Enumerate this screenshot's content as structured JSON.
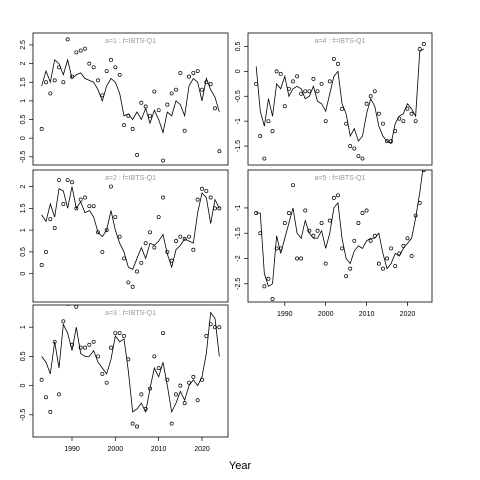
{
  "xlabel": "Year",
  "chart_data": [
    {
      "type": "line",
      "title": "a=1 : f=IBTS-Q1",
      "x": [
        1983,
        1984,
        1985,
        1986,
        1987,
        1988,
        1989,
        1990,
        1991,
        1992,
        1993,
        1994,
        1995,
        1996,
        1997,
        1998,
        1999,
        2000,
        2001,
        2002,
        2003,
        2004,
        2005,
        2006,
        2007,
        2008,
        2009,
        2010,
        2011,
        2012,
        2013,
        2014,
        2015,
        2016,
        2017,
        2018,
        2019,
        2020,
        2021,
        2022,
        2023,
        2024
      ],
      "xlim": [
        1981,
        2026
      ],
      "ylim": [
        -0.72,
        2.82
      ],
      "yticks": [
        -0.5,
        0.0,
        0.5,
        1.0,
        1.5,
        2.0,
        2.5
      ],
      "series": [
        {
          "style": "points",
          "color": "#000000",
          "values": [
            0.25,
            1.5,
            1.2,
            1.55,
            1.9,
            1.5,
            2.65,
            1.65,
            2.3,
            2.35,
            2.4,
            2.0,
            1.9,
            1.55,
            1.15,
            1.8,
            2.1,
            1.9,
            1.7,
            0.35,
            0.6,
            0.25,
            -0.45,
            0.95,
            0.85,
            0.6,
            1.25,
            0.75,
            -0.6,
            0.9,
            1.2,
            1.3,
            1.75,
            0.2,
            1.65,
            1.75,
            1.8,
            1.3,
            1.5,
            1.45,
            0.8,
            -0.35
          ]
        },
        {
          "style": "line",
          "color": "#000000",
          "values": [
            1.4,
            1.8,
            1.5,
            2.1,
            2.0,
            1.7,
            2.1,
            1.6,
            1.7,
            1.75,
            1.6,
            1.55,
            1.5,
            1.3,
            1.0,
            1.4,
            1.6,
            1.5,
            1.2,
            0.6,
            0.65,
            0.5,
            0.7,
            0.5,
            0.8,
            0.4,
            0.75,
            0.5,
            0.15,
            0.7,
            0.6,
            1.0,
            0.9,
            0.6,
            1.4,
            1.6,
            1.5,
            1.0,
            1.6,
            1.3,
            1.1,
            0.7
          ]
        }
      ]
    },
    {
      "type": "line",
      "title": "a=2 : f=IBTS-Q1",
      "x": [
        1983,
        1984,
        1985,
        1986,
        1987,
        1988,
        1989,
        1990,
        1991,
        1992,
        1993,
        1994,
        1995,
        1996,
        1997,
        1998,
        1999,
        2000,
        2001,
        2002,
        2003,
        2004,
        2005,
        2006,
        2007,
        2008,
        2009,
        2010,
        2011,
        2012,
        2013,
        2014,
        2015,
        2016,
        2017,
        2018,
        2019,
        2020,
        2021,
        2022,
        2023,
        2024
      ],
      "xlim": [
        1981,
        2026
      ],
      "ylim": [
        -0.65,
        2.38
      ],
      "yticks": [
        0.0,
        0.5,
        1.0,
        1.5,
        2.0
      ],
      "series": [
        {
          "style": "points",
          "color": "#000000",
          "values": [
            0.2,
            0.5,
            1.25,
            1.05,
            2.15,
            1.6,
            2.15,
            2.1,
            1.5,
            1.7,
            1.75,
            1.55,
            1.55,
            0.95,
            0.5,
            1.0,
            2.0,
            1.3,
            0.85,
            0.35,
            -0.2,
            -0.3,
            0.05,
            0.25,
            0.7,
            0.95,
            0.6,
            1.3,
            1.75,
            0.5,
            0.3,
            0.75,
            0.85,
            0.8,
            0.85,
            0.55,
            1.7,
            1.95,
            1.9,
            1.75,
            1.5,
            1.5
          ]
        },
        {
          "style": "line",
          "color": "#000000",
          "values": [
            1.35,
            1.2,
            1.6,
            1.3,
            1.95,
            1.9,
            1.5,
            2.0,
            1.5,
            1.65,
            1.4,
            1.45,
            1.3,
            0.95,
            0.85,
            1.0,
            1.45,
            1.0,
            0.7,
            0.5,
            0.15,
            0.1,
            0.35,
            0.6,
            0.35,
            0.7,
            0.65,
            0.75,
            0.9,
            0.45,
            0.15,
            0.55,
            0.65,
            0.8,
            0.75,
            0.7,
            1.4,
            1.85,
            1.75,
            1.15,
            1.7,
            1.5
          ]
        }
      ]
    },
    {
      "type": "line",
      "title": "a=3 : f=IBTS-Q1",
      "x": [
        1983,
        1984,
        1985,
        1986,
        1987,
        1988,
        1989,
        1990,
        1991,
        1992,
        1993,
        1994,
        1995,
        1996,
        1997,
        1998,
        1999,
        2000,
        2001,
        2002,
        2003,
        2004,
        2005,
        2006,
        2007,
        2008,
        2009,
        2010,
        2011,
        2012,
        2013,
        2014,
        2015,
        2016,
        2017,
        2018,
        2019,
        2020,
        2021,
        2022,
        2023,
        2024
      ],
      "xlim": [
        1981,
        2026
      ],
      "xticks": [
        1990,
        2000,
        2010,
        2020
      ],
      "ylim": [
        -0.88,
        1.38
      ],
      "yticks": [
        -0.5,
        0.0,
        0.5,
        1.0
      ],
      "series": [
        {
          "style": "points",
          "color": "#000000",
          "values": [
            0.1,
            -0.2,
            -0.45,
            0.75,
            -0.15,
            1.1,
            1.4,
            0.7,
            1.35,
            0.65,
            0.65,
            0.7,
            0.75,
            0.5,
            0.2,
            0.05,
            0.65,
            0.9,
            0.9,
            0.85,
            0.45,
            -0.65,
            -0.7,
            -0.15,
            -0.4,
            -0.05,
            0.5,
            0.3,
            0.9,
            0.1,
            -0.65,
            -0.15,
            0.0,
            -0.3,
            0.05,
            0.15,
            -0.25,
            0.1,
            0.85,
            1.05,
            1.0,
            1.0
          ]
        },
        {
          "style": "line",
          "color": "#000000",
          "values": [
            0.5,
            0.4,
            0.2,
            0.75,
            0.3,
            1.05,
            0.9,
            0.6,
            1.0,
            0.55,
            0.5,
            0.5,
            0.6,
            0.4,
            0.3,
            0.2,
            0.45,
            0.85,
            0.75,
            0.8,
            0.25,
            -0.45,
            -0.4,
            -0.3,
            -0.45,
            -0.05,
            0.3,
            0.15,
            0.4,
            0.0,
            -0.45,
            -0.3,
            -0.1,
            -0.25,
            0.0,
            0.1,
            0.0,
            0.15,
            0.55,
            1.25,
            1.15,
            0.5
          ]
        }
      ]
    },
    {
      "type": "line",
      "title": "a=4 : f=IBTS-Q1",
      "x": [
        1983,
        1984,
        1985,
        1986,
        1987,
        1988,
        1989,
        1990,
        1991,
        1992,
        1993,
        1994,
        1995,
        1996,
        1997,
        1998,
        1999,
        2000,
        2001,
        2002,
        2003,
        2004,
        2005,
        2006,
        2007,
        2008,
        2009,
        2010,
        2011,
        2012,
        2013,
        2014,
        2015,
        2016,
        2017,
        2018,
        2019,
        2020,
        2021,
        2022,
        2023,
        2024
      ],
      "xlim": [
        1981,
        2026
      ],
      "ylim": [
        -1.88,
        0.77
      ],
      "yticks": [
        -1.5,
        -1.0,
        -0.5,
        0.0,
        0.5
      ],
      "series": [
        {
          "style": "points",
          "color": "#000000",
          "values": [
            -0.25,
            -1.3,
            -1.75,
            -1.0,
            -1.2,
            0.0,
            -0.05,
            -0.7,
            -0.35,
            -0.2,
            -0.1,
            -0.45,
            -0.4,
            -0.4,
            -0.15,
            -0.4,
            -0.25,
            -1.0,
            -0.2,
            0.25,
            0.15,
            -0.75,
            -1.05,
            -1.5,
            -1.55,
            -1.7,
            -1.75,
            -0.65,
            -0.5,
            -0.4,
            -0.85,
            -1.05,
            -1.4,
            -1.4,
            -1.2,
            -0.95,
            -1.0,
            -0.75,
            -0.85,
            -1.0,
            0.45,
            0.55
          ]
        },
        {
          "style": "line",
          "color": "#000000",
          "values": [
            0.1,
            -0.8,
            -1.1,
            -0.55,
            -0.9,
            -0.25,
            -0.35,
            -0.1,
            -0.5,
            -0.35,
            -0.3,
            -0.35,
            -0.55,
            -0.5,
            -0.3,
            -0.6,
            -0.65,
            -0.8,
            -0.45,
            -0.1,
            0.0,
            -0.65,
            -0.85,
            -1.3,
            -1.15,
            -1.4,
            -1.3,
            -0.85,
            -0.55,
            -0.7,
            -1.1,
            -1.3,
            -1.4,
            -1.45,
            -1.05,
            -0.9,
            -0.85,
            -0.65,
            -0.75,
            -0.9,
            0.4,
            0.45
          ]
        }
      ]
    },
    {
      "type": "line",
      "title": "a=5 : f=IBTS-Q1",
      "x": [
        1983,
        1984,
        1985,
        1986,
        1987,
        1988,
        1989,
        1990,
        1991,
        1992,
        1993,
        1994,
        1995,
        1996,
        1997,
        1998,
        1999,
        2000,
        2001,
        2002,
        2003,
        2004,
        2005,
        2006,
        2007,
        2008,
        2009,
        2010,
        2011,
        2012,
        2013,
        2014,
        2015,
        2016,
        2017,
        2018,
        2019,
        2020,
        2021,
        2022,
        2023,
        2024
      ],
      "xlim": [
        1981,
        2026
      ],
      "xticks": [
        1990,
        2000,
        2010,
        2020
      ],
      "ylim": [
        -2.86,
        -0.25
      ],
      "yticks": [
        -2.5,
        -2.0,
        -1.5,
        -1.0
      ],
      "series": [
        {
          "style": "points",
          "color": "#000000",
          "values": [
            -1.1,
            -1.5,
            -2.55,
            -2.4,
            -2.8,
            -1.8,
            -1.8,
            -1.3,
            -1.1,
            -0.55,
            -2.0,
            -2.0,
            -1.05,
            -1.45,
            -1.55,
            -1.45,
            -1.3,
            -2.1,
            -1.25,
            -0.8,
            -0.75,
            -1.8,
            -2.35,
            -2.2,
            -1.65,
            -1.3,
            -1.1,
            -1.05,
            -1.65,
            -1.55,
            -2.1,
            -2.2,
            -2.0,
            -1.8,
            -2.15,
            -1.9,
            -1.75,
            -1.6,
            -1.95,
            -1.15,
            -0.9,
            -0.25
          ]
        },
        {
          "style": "line",
          "color": "#000000",
          "values": [
            -1.1,
            -1.1,
            -2.3,
            -2.55,
            -2.5,
            -1.55,
            -1.9,
            -1.6,
            -1.3,
            -1.0,
            -1.5,
            -1.6,
            -1.25,
            -1.5,
            -1.6,
            -1.6,
            -1.45,
            -1.8,
            -1.5,
            -1.0,
            -0.9,
            -1.6,
            -2.0,
            -2.1,
            -1.85,
            -1.75,
            -1.8,
            -1.65,
            -1.6,
            -1.6,
            -1.5,
            -1.9,
            -2.2,
            -2.1,
            -1.9,
            -1.95,
            -1.8,
            -1.7,
            -1.6,
            -1.2,
            -0.7,
            -0.1
          ]
        }
      ]
    }
  ]
}
